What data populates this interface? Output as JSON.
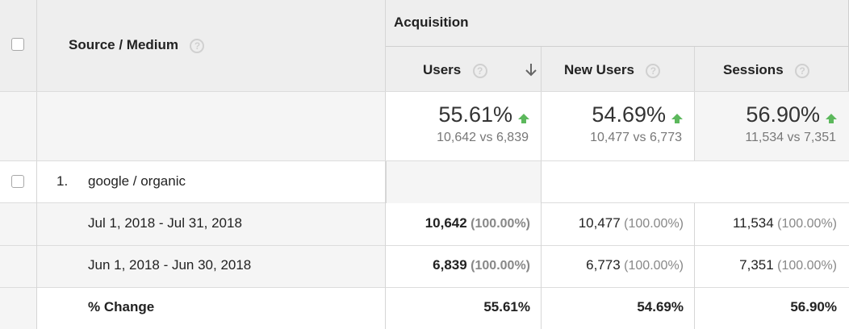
{
  "header": {
    "dimension_label": "Source / Medium",
    "group_label": "Acquisition",
    "help_glyph": "?",
    "columns": [
      {
        "label": "Users",
        "sorted": "descending"
      },
      {
        "label": "New Users"
      },
      {
        "label": "Sessions"
      }
    ]
  },
  "summary": {
    "users": {
      "pct": "55.61%",
      "compare": "10,642 vs 6,839"
    },
    "new_users": {
      "pct": "54.69%",
      "compare": "10,477 vs 6,773"
    },
    "sessions": {
      "pct": "56.90%",
      "compare": "11,534 vs 7,351"
    },
    "trend_color": "#5cb85c"
  },
  "rows": [
    {
      "index": "1.",
      "label": "google / organic"
    },
    {
      "label": "Jul 1, 2018 - Jul 31, 2018",
      "users": "10,642",
      "users_pct": "(100.00%)",
      "new_users": "10,477",
      "new_users_pct": "(100.00%)",
      "sessions": "11,534",
      "sessions_pct": "(100.00%)"
    },
    {
      "label": "Jun 1, 2018 - Jun 30, 2018",
      "users": "6,839",
      "users_pct": "(100.00%)",
      "new_users": "6,773",
      "new_users_pct": "(100.00%)",
      "sessions": "7,351",
      "sessions_pct": "(100.00%)"
    },
    {
      "label": "% Change",
      "users": "55.61%",
      "new_users": "54.69%",
      "sessions": "56.90%"
    }
  ]
}
